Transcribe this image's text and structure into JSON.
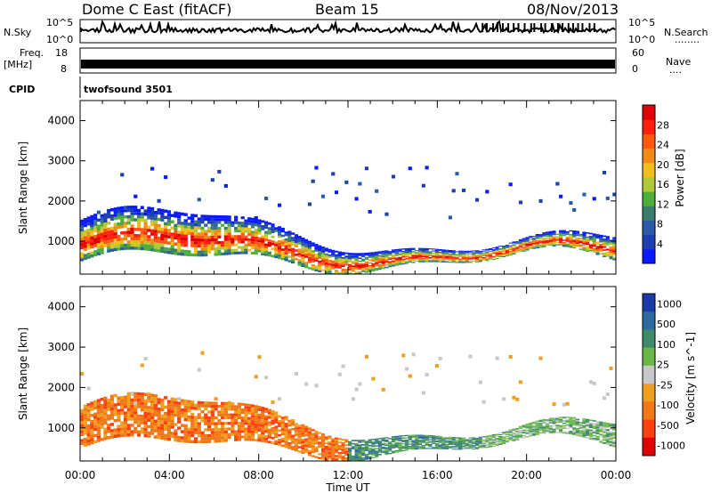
{
  "header": {
    "station": "Dome C East (fitACF)",
    "beam": "Beam 15",
    "date": "08/Nov/2013"
  },
  "noise_panel": {
    "left_label": "N.Sky",
    "left_tick_top": "10^5",
    "left_tick_bottom": "10^0",
    "right_label": "N.Search",
    "right_tick_top": "10^5",
    "right_tick_bottom": "10^0",
    "right_dots": "........"
  },
  "freq_panel": {
    "left_label_line1": "Freq.",
    "left_label_line2": "[MHz]",
    "left_tick_top": "18",
    "left_tick_bottom": "8",
    "right_label": "Nave",
    "right_dots": "....",
    "right_tick_top": "60",
    "right_tick_bottom": "0"
  },
  "cpid": {
    "label": "CPID",
    "value": "twofsound 3501"
  },
  "chart_data": [
    {
      "type": "heatmap",
      "title": "",
      "ylabel": "Slant Range [km]",
      "xlabel": "",
      "x_ticks": [
        "00:00",
        "04:00",
        "08:00",
        "12:00",
        "16:00",
        "20:00",
        "00:00"
      ],
      "y_ticks": [
        "1000",
        "2000",
        "3000",
        "4000"
      ],
      "ylim": [
        180,
        4500
      ],
      "colorbar": {
        "label": "Power [dB]",
        "ticks": [
          "4",
          "8",
          "12",
          "16",
          "20",
          "24",
          "28"
        ],
        "colors": [
          "#0a1aff",
          "#1f3fb0",
          "#2a5aa8",
          "#3a7d6b",
          "#4fae3a",
          "#b0c83a",
          "#f0c018",
          "#f08a18",
          "#ff5a10",
          "#ff2010",
          "#e00000"
        ]
      }
    },
    {
      "type": "heatmap",
      "title": "",
      "ylabel": "Slant Range [km]",
      "xlabel": "Time UT",
      "x_ticks": [
        "00:00",
        "04:00",
        "08:00",
        "12:00",
        "16:00",
        "20:00",
        "00:00"
      ],
      "y_ticks": [
        "1000",
        "2000",
        "3000",
        "4000"
      ],
      "ylim": [
        180,
        4500
      ],
      "colorbar": {
        "label": "Velocity [m s^-1]",
        "ticks": [
          "1000",
          "500",
          "100",
          "25",
          "-25",
          "-100",
          "-500",
          "-1000"
        ],
        "colors": [
          "#1a3aa8",
          "#2d6a9e",
          "#3f8a6a",
          "#6ab84a",
          "#c8c8c8",
          "#f0a020",
          "#f07818",
          "#ff4010",
          "#e00000"
        ]
      }
    }
  ]
}
